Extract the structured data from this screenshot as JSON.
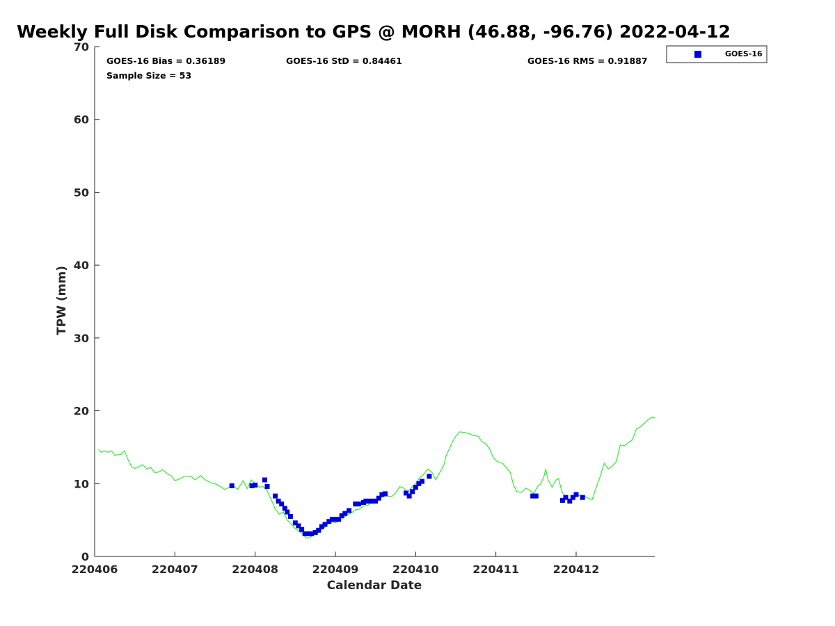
{
  "chart_data": {
    "type": "scatter",
    "title": "Weekly Full Disk Comparison to GPS @ MORH (46.88, -96.76) 2022-04-12",
    "xlabel": "Calendar Date",
    "ylabel": "TPW (mm)",
    "x_tick_labels": [
      "220406",
      "220407",
      "220408",
      "220409",
      "220410",
      "220411",
      "220412"
    ],
    "x_tick_values": [
      6,
      7,
      8,
      9,
      10,
      11,
      12
    ],
    "xlim": [
      6,
      12.98
    ],
    "ylim": [
      0,
      70
    ],
    "y_ticks": [
      0,
      10,
      20,
      30,
      40,
      50,
      60,
      70
    ],
    "grid": false,
    "legend": {
      "position": "top-right-outside",
      "entries": [
        "GOES-16"
      ]
    },
    "stats": {
      "bias": "GOES-16 Bias = 0.36189",
      "std": "GOES-16 StD = 0.84461",
      "rms": "GOES-16 RMS = 0.91887",
      "sample": "Sample Size = 53"
    },
    "series": [
      {
        "name": "GOES-16",
        "kind": "scatter",
        "color": "#0000dd",
        "marker": "square",
        "points": [
          [
            7.71,
            9.7
          ],
          [
            7.96,
            9.7
          ],
          [
            8.0,
            9.8
          ],
          [
            8.12,
            10.5
          ],
          [
            8.15,
            9.6
          ],
          [
            8.25,
            8.3
          ],
          [
            8.29,
            7.6
          ],
          [
            8.33,
            7.2
          ],
          [
            8.37,
            6.6
          ],
          [
            8.4,
            6.1
          ],
          [
            8.44,
            5.5
          ],
          [
            8.5,
            4.6
          ],
          [
            8.54,
            4.2
          ],
          [
            8.58,
            3.7
          ],
          [
            8.62,
            3.1
          ],
          [
            8.66,
            3.1
          ],
          [
            8.7,
            3.1
          ],
          [
            8.75,
            3.3
          ],
          [
            8.79,
            3.6
          ],
          [
            8.83,
            4.1
          ],
          [
            8.87,
            4.4
          ],
          [
            8.92,
            4.8
          ],
          [
            8.96,
            5.1
          ],
          [
            9.0,
            5.1
          ],
          [
            9.04,
            5.1
          ],
          [
            9.08,
            5.6
          ],
          [
            9.12,
            5.9
          ],
          [
            9.17,
            6.3
          ],
          [
            9.25,
            7.2
          ],
          [
            9.29,
            7.2
          ],
          [
            9.35,
            7.4
          ],
          [
            9.38,
            7.6
          ],
          [
            9.42,
            7.6
          ],
          [
            9.46,
            7.6
          ],
          [
            9.5,
            7.6
          ],
          [
            9.54,
            8.0
          ],
          [
            9.58,
            8.5
          ],
          [
            9.62,
            8.6
          ],
          [
            9.88,
            8.7
          ],
          [
            9.92,
            8.3
          ],
          [
            9.96,
            8.9
          ],
          [
            10.0,
            9.5
          ],
          [
            10.04,
            10.0
          ],
          [
            10.08,
            10.3
          ],
          [
            10.17,
            11.0
          ],
          [
            11.46,
            8.3
          ],
          [
            11.5,
            8.3
          ],
          [
            11.83,
            7.7
          ],
          [
            11.87,
            8.1
          ],
          [
            11.92,
            7.6
          ],
          [
            11.96,
            8.1
          ],
          [
            12.0,
            8.5
          ],
          [
            12.08,
            8.1
          ]
        ]
      },
      {
        "name": "",
        "kind": "line",
        "color": "#33ee33",
        "points": [
          [
            6.05,
            14.7
          ],
          [
            6.08,
            14.3
          ],
          [
            6.12,
            14.5
          ],
          [
            6.17,
            14.3
          ],
          [
            6.21,
            14.5
          ],
          [
            6.25,
            13.9
          ],
          [
            6.33,
            14.0
          ],
          [
            6.37,
            14.5
          ],
          [
            6.42,
            13.2
          ],
          [
            6.46,
            12.3
          ],
          [
            6.5,
            12.1
          ],
          [
            6.55,
            12.3
          ],
          [
            6.6,
            12.6
          ],
          [
            6.65,
            12.0
          ],
          [
            6.7,
            12.2
          ],
          [
            6.75,
            11.5
          ],
          [
            6.8,
            11.6
          ],
          [
            6.85,
            11.9
          ],
          [
            6.9,
            11.4
          ],
          [
            6.95,
            11.1
          ],
          [
            7.0,
            10.4
          ],
          [
            7.05,
            10.6
          ],
          [
            7.12,
            11.0
          ],
          [
            7.2,
            11.0
          ],
          [
            7.25,
            10.5
          ],
          [
            7.32,
            11.1
          ],
          [
            7.38,
            10.5
          ],
          [
            7.45,
            10.1
          ],
          [
            7.52,
            9.9
          ],
          [
            7.58,
            9.5
          ],
          [
            7.62,
            9.2
          ],
          [
            7.68,
            9.5
          ],
          [
            7.72,
            9.8
          ],
          [
            7.78,
            9.2
          ],
          [
            7.85,
            10.4
          ],
          [
            7.9,
            9.3
          ],
          [
            7.95,
            10.5
          ],
          [
            8.0,
            10.0
          ],
          [
            8.05,
            9.5
          ],
          [
            8.1,
            9.6
          ],
          [
            8.15,
            9.0
          ],
          [
            8.2,
            7.8
          ],
          [
            8.25,
            6.5
          ],
          [
            8.3,
            5.8
          ],
          [
            8.35,
            6.1
          ],
          [
            8.4,
            5.0
          ],
          [
            8.45,
            4.4
          ],
          [
            8.5,
            3.8
          ],
          [
            8.55,
            3.4
          ],
          [
            8.6,
            3.0
          ],
          [
            8.64,
            2.5
          ],
          [
            8.68,
            2.6
          ],
          [
            8.72,
            2.9
          ],
          [
            8.76,
            3.0
          ],
          [
            8.8,
            3.5
          ],
          [
            8.85,
            3.8
          ],
          [
            8.9,
            4.4
          ],
          [
            8.95,
            4.8
          ],
          [
            9.0,
            4.6
          ],
          [
            9.05,
            5.0
          ],
          [
            9.1,
            5.3
          ],
          [
            9.15,
            5.7
          ],
          [
            9.2,
            6.0
          ],
          [
            9.25,
            6.4
          ],
          [
            9.3,
            6.5
          ],
          [
            9.35,
            6.9
          ],
          [
            9.4,
            7.0
          ],
          [
            9.45,
            7.4
          ],
          [
            9.5,
            7.5
          ],
          [
            9.55,
            7.9
          ],
          [
            9.6,
            8.3
          ],
          [
            9.65,
            8.3
          ],
          [
            9.7,
            8.2
          ],
          [
            9.75,
            8.7
          ],
          [
            9.8,
            9.6
          ],
          [
            9.85,
            9.4
          ],
          [
            9.9,
            8.8
          ],
          [
            9.95,
            9.5
          ],
          [
            10.0,
            10.0
          ],
          [
            10.05,
            10.8
          ],
          [
            10.1,
            11.3
          ],
          [
            10.15,
            12.0
          ],
          [
            10.2,
            11.6
          ],
          [
            10.25,
            10.5
          ],
          [
            10.3,
            11.5
          ],
          [
            10.35,
            12.5
          ],
          [
            10.38,
            13.8
          ],
          [
            10.42,
            14.8
          ],
          [
            10.46,
            15.8
          ],
          [
            10.5,
            16.5
          ],
          [
            10.55,
            17.1
          ],
          [
            10.62,
            17.0
          ],
          [
            10.68,
            16.8
          ],
          [
            10.72,
            16.6
          ],
          [
            10.78,
            16.5
          ],
          [
            10.82,
            15.8
          ],
          [
            10.87,
            15.5
          ],
          [
            10.92,
            14.8
          ],
          [
            10.97,
            13.5
          ],
          [
            11.02,
            13.0
          ],
          [
            11.08,
            12.8
          ],
          [
            11.13,
            12.2
          ],
          [
            11.18,
            11.5
          ],
          [
            11.22,
            9.8
          ],
          [
            11.26,
            8.9
          ],
          [
            11.32,
            8.8
          ],
          [
            11.37,
            9.4
          ],
          [
            11.42,
            9.1
          ],
          [
            11.47,
            8.6
          ],
          [
            11.52,
            9.6
          ],
          [
            11.56,
            10.0
          ],
          [
            11.6,
            11.0
          ],
          [
            11.62,
            12.0
          ],
          [
            11.65,
            10.5
          ],
          [
            11.7,
            9.5
          ],
          [
            11.75,
            10.5
          ],
          [
            11.78,
            10.7
          ],
          [
            11.82,
            9.0
          ],
          [
            11.86,
            8.1
          ],
          [
            11.9,
            7.8
          ],
          [
            11.95,
            7.9
          ],
          [
            12.0,
            8.2
          ],
          [
            12.05,
            8.4
          ],
          [
            12.1,
            8.3
          ],
          [
            12.15,
            8.0
          ],
          [
            12.2,
            7.8
          ],
          [
            12.25,
            9.5
          ],
          [
            12.3,
            11.0
          ],
          [
            12.35,
            12.8
          ],
          [
            12.4,
            12.0
          ],
          [
            12.45,
            12.4
          ],
          [
            12.5,
            13.0
          ],
          [
            12.55,
            15.3
          ],
          [
            12.6,
            15.2
          ],
          [
            12.65,
            15.6
          ],
          [
            12.7,
            16.0
          ],
          [
            12.75,
            17.5
          ],
          [
            12.8,
            17.8
          ],
          [
            12.85,
            18.3
          ],
          [
            12.9,
            18.8
          ],
          [
            12.94,
            19.1
          ],
          [
            12.98,
            19.0
          ]
        ]
      }
    ]
  }
}
